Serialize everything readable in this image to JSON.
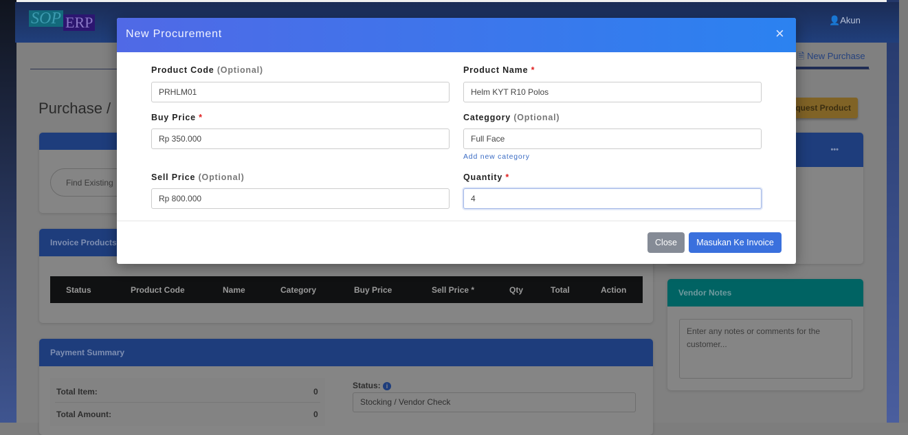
{
  "navbar": {
    "logo_left": "SOP",
    "logo_right": "ERP",
    "account_label": "Akun",
    "account_icon": "user-icon"
  },
  "page": {
    "title": "Purchase /",
    "tab_active": "New Purchase",
    "tab_icon": "document-icon",
    "request_button": "quest Product",
    "find_button": "Find Existing"
  },
  "invoice": {
    "title": "Invoice Products",
    "columns": [
      "Status",
      "Product Code",
      "Name",
      "Category",
      "Buy Price",
      "Sell Price *",
      "Qty",
      "Total",
      "Action"
    ]
  },
  "payment": {
    "title": "Payment Summary",
    "total_item_label": "Total Item:",
    "total_item_value": "0",
    "total_amount_label": "Total Amount:",
    "total_amount_value": "0",
    "status_label": "Status:",
    "status_value": "Stocking / Vendor Check"
  },
  "vendor": {
    "title": "Vendor Notes",
    "placeholder": "Enter any notes or comments for the customer...",
    "menu": "•••"
  },
  "modal": {
    "title": "New Procurement",
    "close_icon": "×",
    "fields": {
      "product_code": {
        "label": "Product Code",
        "hint": "(Optional)",
        "value": "PRHLM01"
      },
      "product_name": {
        "label": "Product Name",
        "hint": "*",
        "value": "Helm KYT R10 Polos"
      },
      "buy_price": {
        "label": "Buy Price",
        "hint": "*",
        "value": "Rp 350.000"
      },
      "category": {
        "label": "Categgory",
        "hint": "(Optional)",
        "value": "Full Face",
        "link": "Add new category"
      },
      "sell_price": {
        "label": "Sell Price",
        "hint": "(Optional)",
        "value": "Rp 800.000"
      },
      "quantity": {
        "label": "Quantity",
        "hint": "*",
        "value": "4"
      }
    },
    "close_button": "Close",
    "submit_button": "Masukan Ke Invoice"
  },
  "colors": {
    "modal_header_start": "#5069e6",
    "modal_header_end": "#2b82f0",
    "primary": "#3a70dd",
    "secondary": "#858b96",
    "required": "#e02020"
  }
}
